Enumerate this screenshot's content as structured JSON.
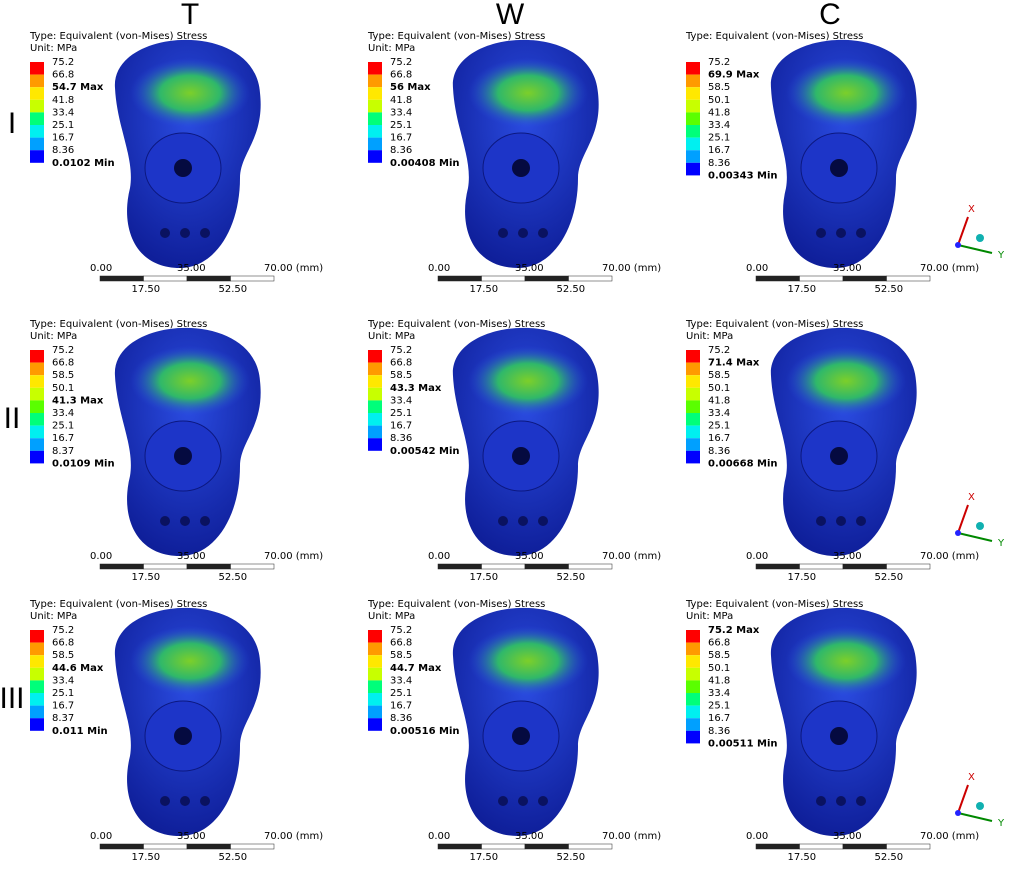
{
  "columns": [
    "T",
    "W",
    "C"
  ],
  "rows": [
    {
      "label": "I",
      "panels": [
        {
          "type": "Type: Equivalent (von-Mises) Stress",
          "unit": "Unit: MPa",
          "legend": [
            {
              "text": "75.2",
              "bold": false
            },
            {
              "text": "66.8",
              "bold": false
            },
            {
              "text": "54.7 Max",
              "bold": true
            },
            {
              "text": "41.8",
              "bold": false
            },
            {
              "text": "33.4",
              "bold": false
            },
            {
              "text": "25.1",
              "bold": false
            },
            {
              "text": "16.7",
              "bold": false
            },
            {
              "text": "8.36",
              "bold": false
            },
            {
              "text": "0.0102 Min",
              "bold": true
            }
          ]
        },
        {
          "type": "Type: Equivalent (von-Mises) Stress",
          "unit": "Unit: MPa",
          "legend": [
            {
              "text": "75.2",
              "bold": false
            },
            {
              "text": "66.8",
              "bold": false
            },
            {
              "text": "56 Max",
              "bold": true
            },
            {
              "text": "41.8",
              "bold": false
            },
            {
              "text": "33.4",
              "bold": false
            },
            {
              "text": "25.1",
              "bold": false
            },
            {
              "text": "16.7",
              "bold": false
            },
            {
              "text": "8.36",
              "bold": false
            },
            {
              "text": "0.00408 Min",
              "bold": true
            }
          ]
        },
        {
          "type": "Type: Equivalent (von-Mises) Stress",
          "legend": [
            {
              "text": "75.2",
              "bold": false
            },
            {
              "text": "69.9 Max",
              "bold": true
            },
            {
              "text": "58.5",
              "bold": false
            },
            {
              "text": "50.1",
              "bold": false
            },
            {
              "text": "41.8",
              "bold": false
            },
            {
              "text": "33.4",
              "bold": false
            },
            {
              "text": "25.1",
              "bold": false
            },
            {
              "text": "16.7",
              "bold": false
            },
            {
              "text": "8.36",
              "bold": false
            },
            {
              "text": "0.00343 Min",
              "bold": true
            }
          ]
        }
      ]
    },
    {
      "label": "II",
      "panels": [
        {
          "type": "Type: Equivalent (von-Mises) Stress",
          "unit": "Unit: MPa",
          "legend": [
            {
              "text": "75.2",
              "bold": false
            },
            {
              "text": "66.8",
              "bold": false
            },
            {
              "text": "58.5",
              "bold": false
            },
            {
              "text": "50.1",
              "bold": false
            },
            {
              "text": "41.3 Max",
              "bold": true
            },
            {
              "text": "33.4",
              "bold": false
            },
            {
              "text": "25.1",
              "bold": false
            },
            {
              "text": "16.7",
              "bold": false
            },
            {
              "text": "8.37",
              "bold": false
            },
            {
              "text": "0.0109 Min",
              "bold": true
            }
          ]
        },
        {
          "type": "Type: Equivalent (von-Mises) Stress",
          "unit": "Unit: MPa",
          "legend": [
            {
              "text": "75.2",
              "bold": false
            },
            {
              "text": "66.8",
              "bold": false
            },
            {
              "text": "58.5",
              "bold": false
            },
            {
              "text": "43.3 Max",
              "bold": true
            },
            {
              "text": "33.4",
              "bold": false
            },
            {
              "text": "25.1",
              "bold": false
            },
            {
              "text": "16.7",
              "bold": false
            },
            {
              "text": "8.36",
              "bold": false
            },
            {
              "text": "0.00542 Min",
              "bold": true
            }
          ]
        },
        {
          "type": "Type: Equivalent (von-Mises) Stress",
          "unit": "Unit: MPa",
          "legend": [
            {
              "text": "75.2",
              "bold": false
            },
            {
              "text": "71.4 Max",
              "bold": true
            },
            {
              "text": "58.5",
              "bold": false
            },
            {
              "text": "50.1",
              "bold": false
            },
            {
              "text": "41.8",
              "bold": false
            },
            {
              "text": "33.4",
              "bold": false
            },
            {
              "text": "25.1",
              "bold": false
            },
            {
              "text": "16.7",
              "bold": false
            },
            {
              "text": "8.36",
              "bold": false
            },
            {
              "text": "0.00668 Min",
              "bold": true
            }
          ]
        }
      ]
    },
    {
      "label": "III",
      "panels": [
        {
          "type": "Type: Equivalent (von-Mises) Stress",
          "unit": "Unit: MPa",
          "legend": [
            {
              "text": "75.2",
              "bold": false
            },
            {
              "text": "66.8",
              "bold": false
            },
            {
              "text": "58.5",
              "bold": false
            },
            {
              "text": "44.6 Max",
              "bold": true
            },
            {
              "text": "33.4",
              "bold": false
            },
            {
              "text": "25.1",
              "bold": false
            },
            {
              "text": "16.7",
              "bold": false
            },
            {
              "text": "8.37",
              "bold": false
            },
            {
              "text": "0.011 Min",
              "bold": true
            }
          ]
        },
        {
          "type": "Type: Equivalent (von-Mises) Stress",
          "unit": "Unit: MPa",
          "legend": [
            {
              "text": "75.2",
              "bold": false
            },
            {
              "text": "66.8",
              "bold": false
            },
            {
              "text": "58.5",
              "bold": false
            },
            {
              "text": "44.7 Max",
              "bold": true
            },
            {
              "text": "33.4",
              "bold": false
            },
            {
              "text": "25.1",
              "bold": false
            },
            {
              "text": "16.7",
              "bold": false
            },
            {
              "text": "8.36",
              "bold": false
            },
            {
              "text": "0.00516 Min",
              "bold": true
            }
          ]
        },
        {
          "type": "Type: Equivalent (von-Mises) Stress",
          "unit": "Unit: MPa",
          "legend": [
            {
              "text": "75.2 Max",
              "bold": true
            },
            {
              "text": "66.8",
              "bold": false
            },
            {
              "text": "58.5",
              "bold": false
            },
            {
              "text": "50.1",
              "bold": false
            },
            {
              "text": "41.8",
              "bold": false
            },
            {
              "text": "33.4",
              "bold": false
            },
            {
              "text": "25.1",
              "bold": false
            },
            {
              "text": "16.7",
              "bold": false
            },
            {
              "text": "8.36",
              "bold": false
            },
            {
              "text": "0.00511 Min",
              "bold": true
            }
          ]
        }
      ]
    }
  ],
  "scale_bar": {
    "top": [
      "0.00",
      "35.00",
      "70.00 (mm)"
    ],
    "bottom": [
      "17.50",
      "52.50"
    ]
  },
  "triad": {
    "x": "X",
    "y": "Y"
  }
}
